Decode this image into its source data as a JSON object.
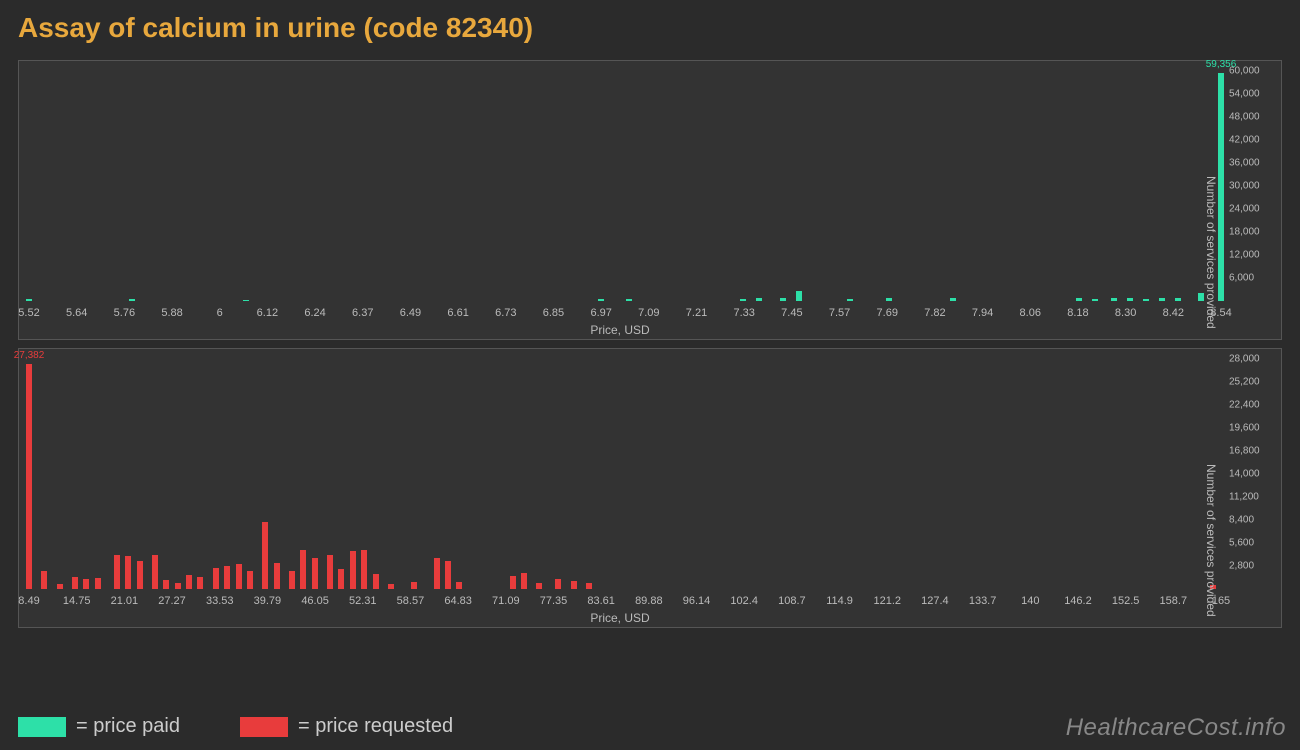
{
  "title": "Assay of calcium in urine (code 82340)",
  "xlabel": "Price, USD",
  "ylabel": "Number of services provided",
  "watermark": "HealthcareCost.info",
  "colors": {
    "background": "#2b2b2b",
    "panel": "#333333",
    "border": "#555555",
    "title": "#e8a83d",
    "axis_text": "#bbbbbb",
    "paid": "#2de0a8",
    "requested": "#e83c3c",
    "watermark": "#888888"
  },
  "legend": [
    {
      "swatch": "green",
      "text": "= price paid"
    },
    {
      "swatch": "red",
      "text": "= price requested"
    }
  ],
  "chart_paid": {
    "type": "histogram",
    "xlim": [
      5.52,
      8.54
    ],
    "ylim": [
      0,
      60000
    ],
    "xticks": [
      "5.52",
      "5.64",
      "5.76",
      "5.88",
      "6",
      "6.12",
      "6.24",
      "6.37",
      "6.49",
      "6.61",
      "6.73",
      "6.85",
      "6.97",
      "7.09",
      "7.21",
      "7.33",
      "7.45",
      "7.57",
      "7.69",
      "7.82",
      "7.94",
      "8.06",
      "8.18",
      "8.30",
      "8.42",
      "8.54"
    ],
    "yticks": [
      "6,000",
      "12,000",
      "18,000",
      "24,000",
      "30,000",
      "36,000",
      "42,000",
      "48,000",
      "54,000",
      "60,000"
    ],
    "bar_color": "#2de0a8",
    "peak_label": "59,356",
    "bars": [
      {
        "x": 5.52,
        "y": 500
      },
      {
        "x": 5.78,
        "y": 600
      },
      {
        "x": 6.07,
        "y": 300
      },
      {
        "x": 6.97,
        "y": 400
      },
      {
        "x": 7.04,
        "y": 600
      },
      {
        "x": 7.33,
        "y": 600
      },
      {
        "x": 7.37,
        "y": 800
      },
      {
        "x": 7.43,
        "y": 900
      },
      {
        "x": 7.47,
        "y": 2600
      },
      {
        "x": 7.6,
        "y": 500
      },
      {
        "x": 7.7,
        "y": 700
      },
      {
        "x": 7.86,
        "y": 700
      },
      {
        "x": 8.18,
        "y": 900
      },
      {
        "x": 8.22,
        "y": 500
      },
      {
        "x": 8.27,
        "y": 900
      },
      {
        "x": 8.31,
        "y": 700
      },
      {
        "x": 8.35,
        "y": 600
      },
      {
        "x": 8.39,
        "y": 800
      },
      {
        "x": 8.43,
        "y": 900
      },
      {
        "x": 8.49,
        "y": 2200
      },
      {
        "x": 8.54,
        "y": 59356,
        "label": "59,356"
      }
    ]
  },
  "chart_req": {
    "type": "histogram",
    "xlim": [
      8.49,
      165
    ],
    "ylim": [
      0,
      28000
    ],
    "xticks": [
      "8.49",
      "14.75",
      "21.01",
      "27.27",
      "33.53",
      "39.79",
      "46.05",
      "52.31",
      "58.57",
      "64.83",
      "71.09",
      "77.35",
      "83.61",
      "89.88",
      "96.14",
      "102.4",
      "108.7",
      "114.9",
      "121.2",
      "127.4",
      "133.7",
      "140",
      "146.2",
      "152.5",
      "158.7",
      "165"
    ],
    "yticks": [
      "2,800",
      "5,600",
      "8,400",
      "11,200",
      "14,000",
      "16,800",
      "19,600",
      "22,400",
      "25,200",
      "28,000"
    ],
    "bar_color": "#e83c3c",
    "peak_label": "27,382",
    "bars": [
      {
        "x": 8.49,
        "y": 27382,
        "label": "27,382"
      },
      {
        "x": 10.5,
        "y": 2200
      },
      {
        "x": 12.5,
        "y": 600
      },
      {
        "x": 14.5,
        "y": 1500
      },
      {
        "x": 16.0,
        "y": 1200
      },
      {
        "x": 17.5,
        "y": 1400
      },
      {
        "x": 20.0,
        "y": 4200
      },
      {
        "x": 21.5,
        "y": 4000
      },
      {
        "x": 23.0,
        "y": 3400
      },
      {
        "x": 25.0,
        "y": 4200
      },
      {
        "x": 26.5,
        "y": 1100
      },
      {
        "x": 28.0,
        "y": 700
      },
      {
        "x": 29.5,
        "y": 1700
      },
      {
        "x": 31.0,
        "y": 1500
      },
      {
        "x": 33.0,
        "y": 2600
      },
      {
        "x": 34.5,
        "y": 2800
      },
      {
        "x": 36.0,
        "y": 3000
      },
      {
        "x": 37.5,
        "y": 2200
      },
      {
        "x": 39.5,
        "y": 8200
      },
      {
        "x": 41.0,
        "y": 3200
      },
      {
        "x": 43.0,
        "y": 2200
      },
      {
        "x": 44.5,
        "y": 4800
      },
      {
        "x": 46.0,
        "y": 3800
      },
      {
        "x": 48.0,
        "y": 4100
      },
      {
        "x": 49.5,
        "y": 2400
      },
      {
        "x": 51.0,
        "y": 4600
      },
      {
        "x": 52.5,
        "y": 4700
      },
      {
        "x": 54.0,
        "y": 1800
      },
      {
        "x": 56.0,
        "y": 600
      },
      {
        "x": 59.0,
        "y": 900
      },
      {
        "x": 62.0,
        "y": 3800
      },
      {
        "x": 63.5,
        "y": 3400
      },
      {
        "x": 65.0,
        "y": 800
      },
      {
        "x": 72.0,
        "y": 1600
      },
      {
        "x": 73.5,
        "y": 1900
      },
      {
        "x": 75.5,
        "y": 700
      },
      {
        "x": 78.0,
        "y": 1200
      },
      {
        "x": 80.0,
        "y": 1000
      },
      {
        "x": 82.0,
        "y": 700
      },
      {
        "x": 164.0,
        "y": 500
      }
    ]
  }
}
